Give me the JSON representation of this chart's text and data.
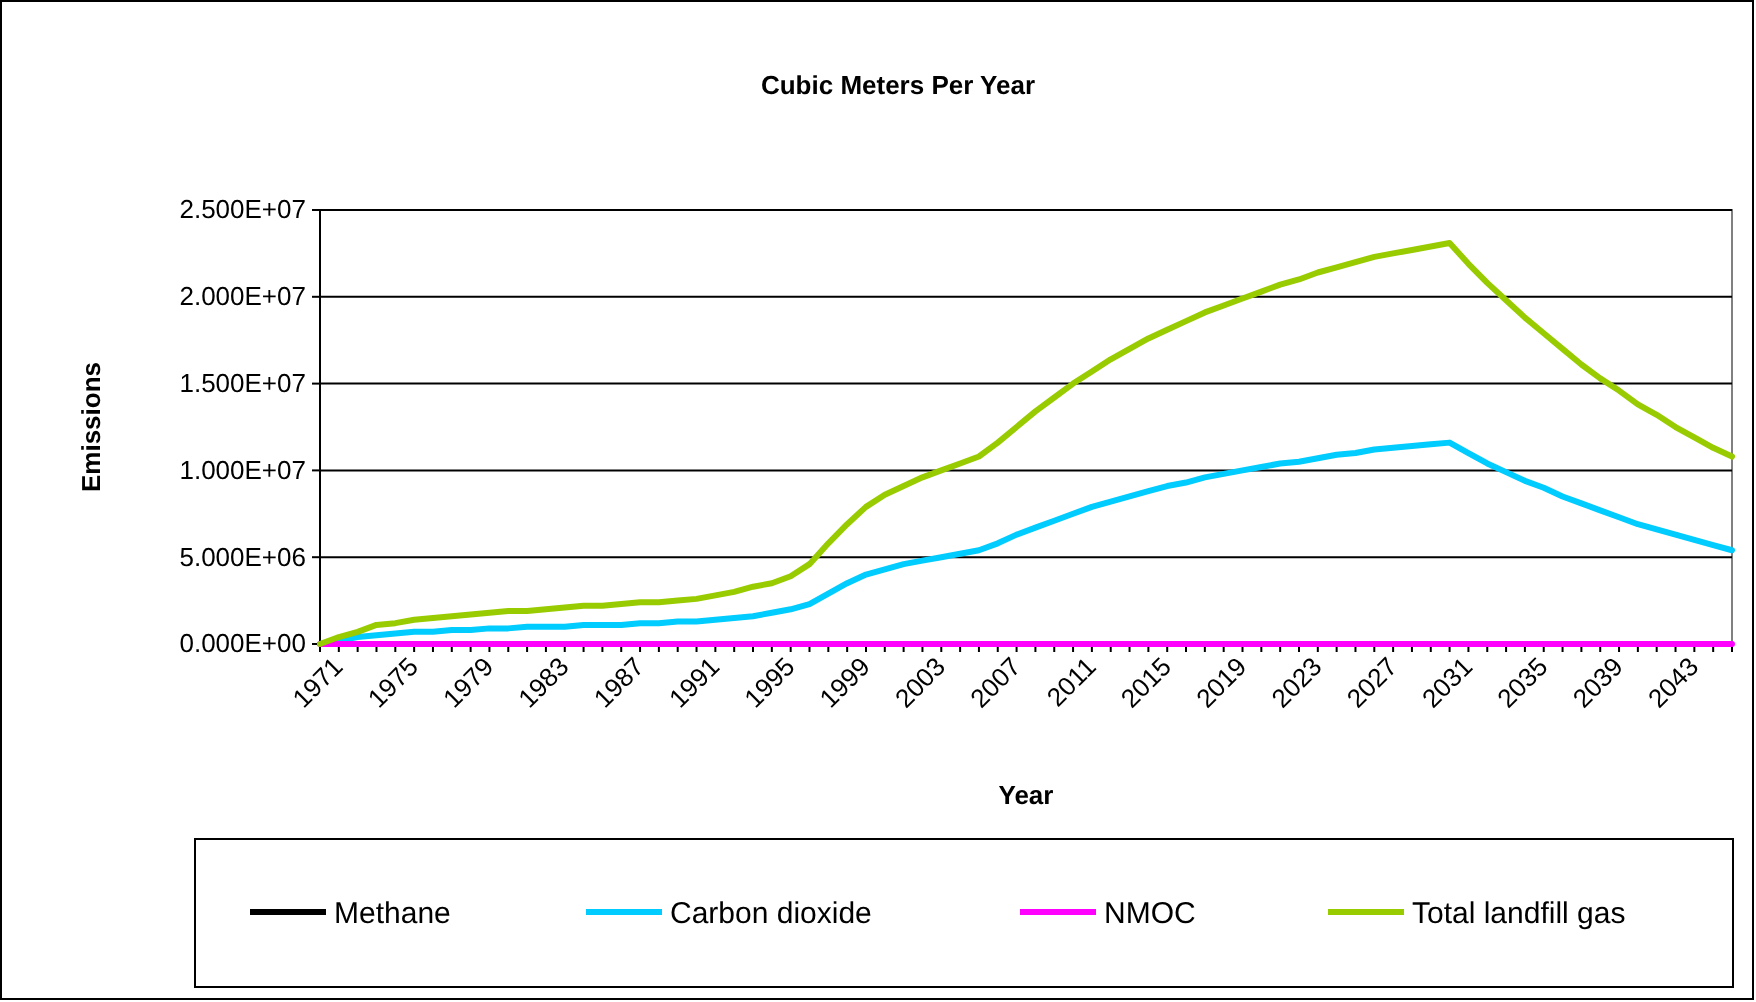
{
  "chart_data": {
    "type": "line",
    "title": "Cubic Meters Per Year",
    "xlabel": "Year",
    "ylabel": "Emissions",
    "categories": [
      "1971",
      null,
      null,
      null,
      "1975",
      null,
      null,
      null,
      "1979",
      null,
      null,
      null,
      "1983",
      null,
      null,
      null,
      "1987",
      null,
      null,
      null,
      "1991",
      null,
      null,
      null,
      "1995",
      null,
      null,
      null,
      "1999",
      null,
      null,
      null,
      "2003",
      null,
      null,
      null,
      "2007",
      null,
      null,
      null,
      "2011",
      null,
      null,
      null,
      "2015",
      null,
      null,
      null,
      "2019",
      null,
      null,
      null,
      "2023",
      null,
      null,
      null,
      "2027",
      null,
      null,
      null,
      "2031",
      null,
      null,
      null,
      "2035",
      null,
      null,
      null,
      "2039",
      null,
      null,
      null,
      "2043",
      null,
      null,
      null
    ],
    "series": [
      {
        "name": "Methane",
        "color": "#000000",
        "values": [
          null,
          null,
          null,
          null,
          null,
          null,
          null,
          null,
          null,
          null,
          null,
          null,
          null,
          null,
          null,
          null,
          null,
          null,
          null,
          null,
          null,
          null,
          null,
          null,
          null,
          null,
          null,
          null,
          null,
          null,
          null,
          null,
          null,
          null,
          null,
          null,
          null,
          null,
          null,
          null,
          null,
          null,
          null,
          null,
          null,
          null,
          null,
          null,
          null,
          null,
          null,
          null,
          null,
          null,
          null,
          null,
          null,
          null,
          null,
          null,
          null,
          null,
          null,
          null,
          null,
          null,
          null,
          null,
          null,
          null,
          null,
          null,
          null,
          null,
          null,
          null
        ]
      },
      {
        "name": "Carbon dioxide",
        "color": "#00ccff",
        "values": [
          0,
          200000,
          400000,
          500000,
          600000,
          700000,
          700000,
          800000,
          800000,
          900000,
          900000,
          1000000,
          1000000,
          1000000,
          1100000,
          1100000,
          1100000,
          1200000,
          1200000,
          1300000,
          1300000,
          1400000,
          1500000,
          1600000,
          1800000,
          2000000,
          2300000,
          2900000,
          3500000,
          4000000,
          4300000,
          4600000,
          4800000,
          5000000,
          5200000,
          5400000,
          5800000,
          6300000,
          6700000,
          7100000,
          7500000,
          7900000,
          8200000,
          8500000,
          8800000,
          9100000,
          9300000,
          9600000,
          9800000,
          10000000,
          10200000,
          10400000,
          10500000,
          10700000,
          10900000,
          11000000,
          11200000,
          11300000,
          11400000,
          11500000,
          11600000,
          11000000,
          10400000,
          9900000,
          9400000,
          9000000,
          8500000,
          8100000,
          7700000,
          7300000,
          6900000,
          6600000,
          6300000,
          6000000,
          5700000,
          5400000
        ]
      },
      {
        "name": "NMOC",
        "color": "#ff00ff",
        "values": [
          0,
          0,
          0,
          0,
          0,
          0,
          0,
          0,
          0,
          0,
          0,
          0,
          0,
          0,
          0,
          0,
          0,
          0,
          0,
          0,
          0,
          0,
          0,
          0,
          0,
          0,
          0,
          0,
          0,
          0,
          0,
          0,
          0,
          0,
          0,
          0,
          0,
          0,
          0,
          0,
          0,
          0,
          0,
          0,
          0,
          0,
          0,
          0,
          0,
          0,
          0,
          0,
          0,
          0,
          0,
          0,
          0,
          0,
          0,
          0,
          0,
          0,
          0,
          0,
          0,
          0,
          0,
          0,
          0,
          0,
          0,
          0,
          0,
          0,
          0,
          0
        ]
      },
      {
        "name": "Total landfill gas",
        "color": "#99cc00",
        "values": [
          0,
          400000,
          700000,
          1100000,
          1200000,
          1400000,
          1500000,
          1600000,
          1700000,
          1800000,
          1900000,
          1900000,
          2000000,
          2100000,
          2200000,
          2200000,
          2300000,
          2400000,
          2400000,
          2500000,
          2600000,
          2800000,
          3000000,
          3300000,
          3500000,
          3900000,
          4600000,
          5800000,
          6900000,
          7900000,
          8600000,
          9100000,
          9600000,
          10000000,
          10400000,
          10800000,
          11600000,
          12500000,
          13400000,
          14200000,
          15000000,
          15700000,
          16400000,
          17000000,
          17600000,
          18100000,
          18600000,
          19100000,
          19500000,
          19900000,
          20300000,
          20700000,
          21000000,
          21400000,
          21700000,
          22000000,
          22300000,
          22500000,
          22700000,
          22900000,
          23100000,
          21900000,
          20800000,
          19800000,
          18800000,
          17900000,
          17000000,
          16100000,
          15300000,
          14600000,
          13800000,
          13200000,
          12500000,
          11900000,
          11300000,
          10800000
        ]
      }
    ],
    "ylim": [
      0,
      25000000
    ],
    "yticks": [
      {
        "value": 0,
        "label": "0.000E+00"
      },
      {
        "value": 5000000,
        "label": "5.000E+06"
      },
      {
        "value": 10000000,
        "label": "1.000E+07"
      },
      {
        "value": 15000000,
        "label": "1.500E+07"
      },
      {
        "value": 20000000,
        "label": "2.000E+07"
      },
      {
        "value": 25000000,
        "label": "2.500E+07"
      }
    ],
    "grid": "y",
    "legend": "bottom",
    "marker": "none",
    "line_style": "solid"
  }
}
